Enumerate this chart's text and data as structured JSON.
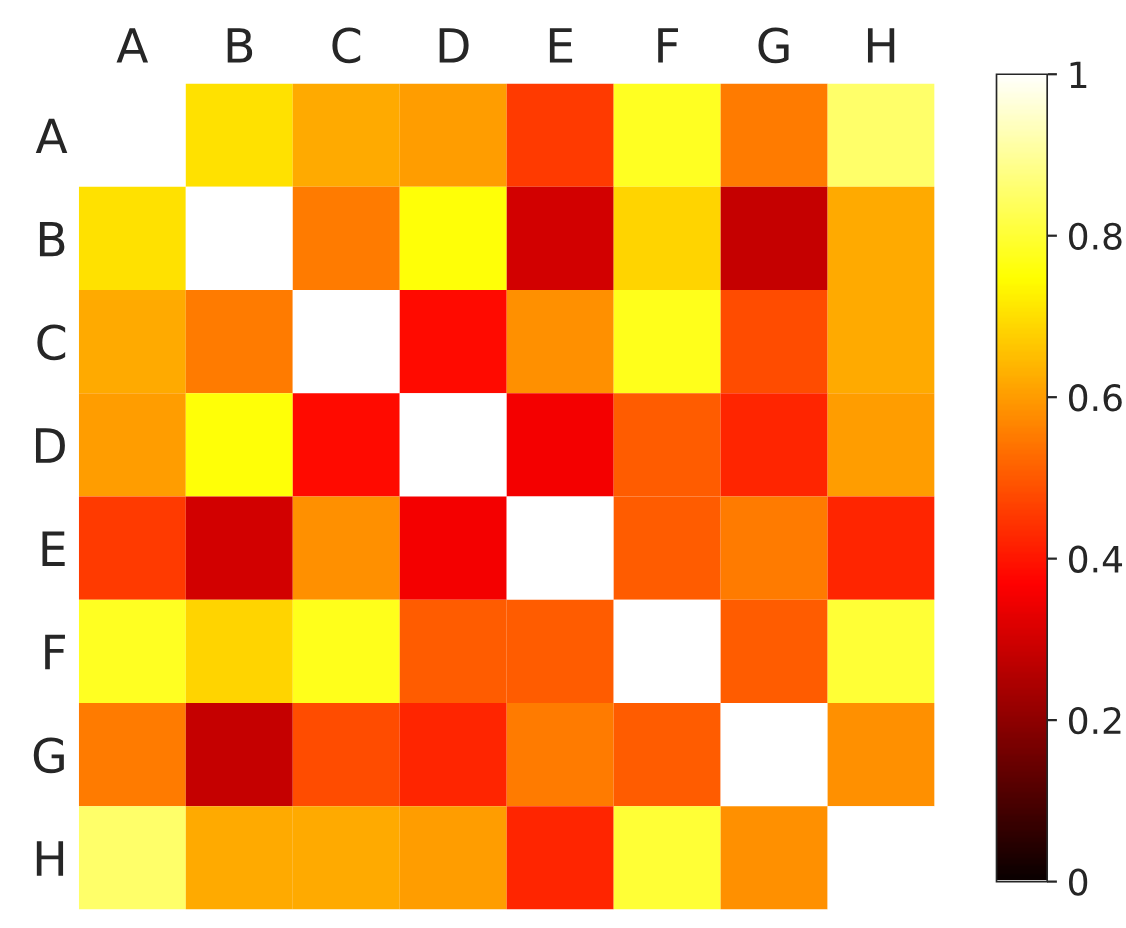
{
  "chart_data": {
    "type": "heatmap",
    "categories": [
      "A",
      "B",
      "C",
      "D",
      "E",
      "F",
      "G",
      "H"
    ],
    "y_categories": [
      "A",
      "B",
      "C",
      "D",
      "E",
      "F",
      "G",
      "H"
    ],
    "cells": [
      [
        1,
        0.7,
        0.62,
        0.6,
        0.45,
        0.78,
        0.55,
        0.85
      ],
      [
        0.7,
        1,
        0.55,
        0.75,
        0.3,
        0.68,
        0.28,
        0.62
      ],
      [
        0.62,
        0.55,
        1,
        0.38,
        0.58,
        0.77,
        0.48,
        0.62
      ],
      [
        0.6,
        0.75,
        0.38,
        1,
        0.35,
        0.5,
        0.42,
        0.6
      ],
      [
        0.45,
        0.3,
        0.58,
        0.35,
        1,
        0.5,
        0.55,
        0.42
      ],
      [
        0.78,
        0.68,
        0.77,
        0.5,
        0.5,
        1,
        0.5,
        0.8
      ],
      [
        0.55,
        0.28,
        0.48,
        0.42,
        0.55,
        0.5,
        1,
        0.58
      ],
      [
        0.85,
        0.62,
        0.62,
        0.6,
        0.42,
        0.8,
        0.58,
        1
      ]
    ],
    "clim": [
      0,
      1
    ],
    "cticks": [
      0,
      0.2,
      0.4,
      0.6,
      0.8,
      1
    ]
  }
}
